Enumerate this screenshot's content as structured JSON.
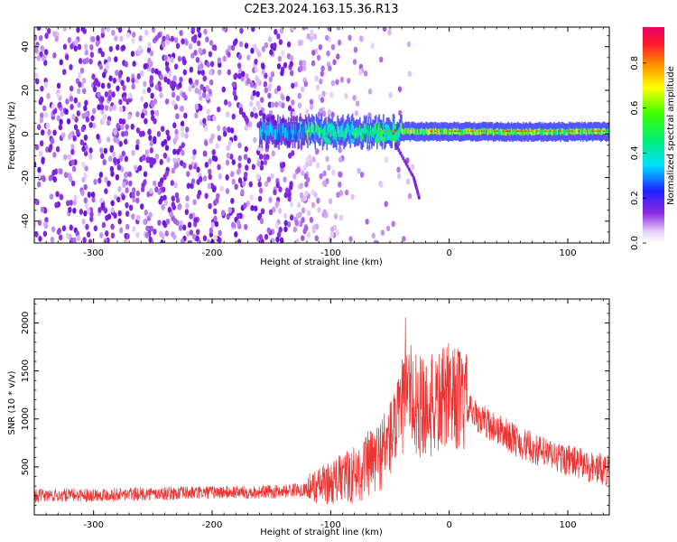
{
  "title": "C2E3.2024.163.15.36.R13",
  "chart_data": [
    {
      "type": "heatmap",
      "xlabel": "Height of straight line (km)",
      "ylabel": "Frequency (Hz)",
      "xlim": [
        -350,
        135
      ],
      "ylim": [
        -50,
        49
      ],
      "xticks": [
        -300,
        -200,
        -100,
        0,
        100
      ],
      "yticks": [
        -40,
        -20,
        0,
        20,
        40
      ],
      "colorbar": {
        "label": "Normalized spectral amplitude",
        "range": [
          0,
          0.96
        ],
        "ticks": [
          0.0,
          0.2,
          0.4,
          0.6,
          0.8
        ],
        "tick_labels": [
          "0.0",
          "0.2",
          "0.4",
          "0.6",
          "0.8"
        ],
        "colormap": "rainbow (white-violet-blue-cyan-green-yellow-red-magenta)"
      },
      "features": [
        {
          "name": "noise",
          "x_range": [
            -350,
            -110
          ],
          "freq_range": [
            -50,
            49
          ],
          "amplitude": 0.1
        },
        {
          "name": "carrier",
          "x_range": [
            -160,
            135
          ],
          "frequency": 1,
          "amplitude_peak": 0.9
        },
        {
          "name": "tail",
          "x_points": [
            -45,
            -30,
            -25
          ],
          "freq_points": [
            -5,
            -20,
            -30
          ]
        }
      ]
    },
    {
      "type": "line",
      "xlabel": "Height of straight line (km)",
      "ylabel": "SNR (10 * v/v)",
      "xlim": [
        -350,
        135
      ],
      "ylim": [
        0,
        2250
      ],
      "xticks": [
        -300,
        -200,
        -100,
        0,
        100
      ],
      "yticks": [
        500,
        1000,
        1500,
        2000
      ],
      "color": "#ee3333",
      "x": [
        -350,
        -300,
        -250,
        -200,
        -150,
        -120,
        -100,
        -80,
        -60,
        -50,
        -40,
        -35,
        -30,
        -20,
        -10,
        0,
        10,
        20,
        40,
        60,
        80,
        100,
        120,
        135
      ],
      "y": [
        200,
        210,
        220,
        235,
        240,
        270,
        340,
        420,
        600,
        800,
        1050,
        1400,
        1150,
        1100,
        1150,
        1250,
        1200,
        1050,
        900,
        750,
        640,
        570,
        500,
        460
      ]
    }
  ]
}
